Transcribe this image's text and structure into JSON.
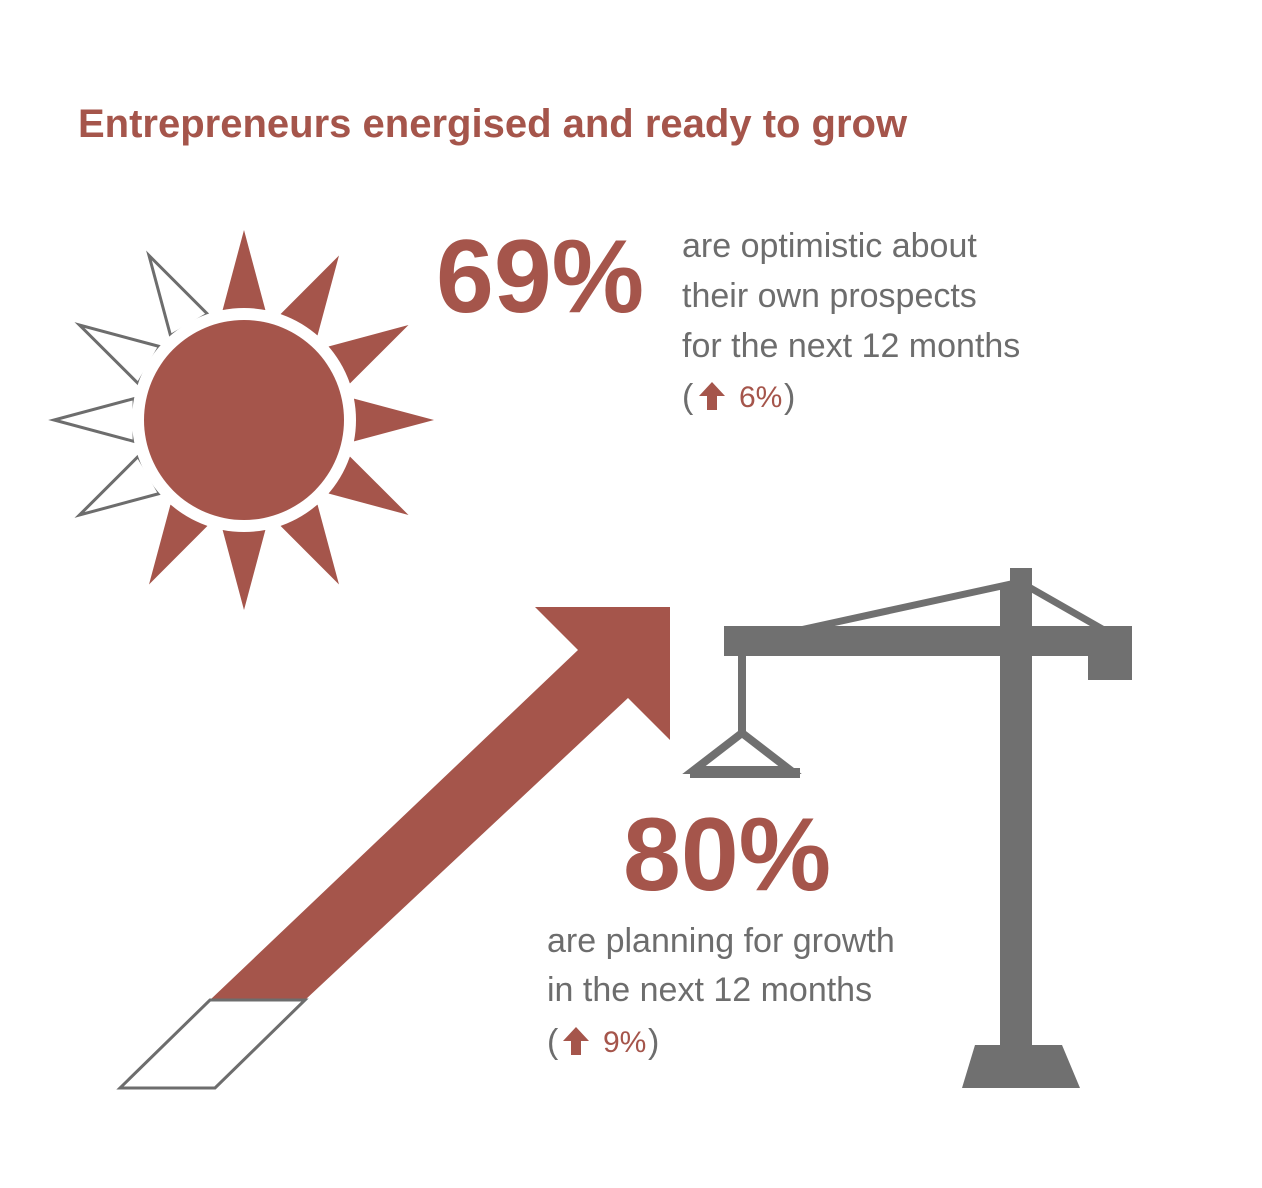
{
  "title": "Entrepreneurs energised and ready to grow",
  "stats": [
    {
      "value": "69%",
      "lines": [
        "are optimistic about",
        "their own prospects",
        "for the next 12 months"
      ],
      "open": "(",
      "change": "6%",
      "close": ")"
    },
    {
      "value": "80%",
      "lines": [
        "are planning for growth",
        "in the next 12 months"
      ],
      "open": "(",
      "change": "9%",
      "close": ")"
    }
  ]
}
